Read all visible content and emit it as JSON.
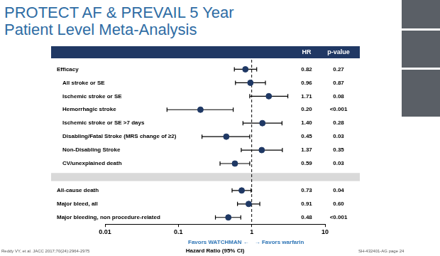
{
  "chart_data": {
    "type": "forest",
    "title": [
      "PROTECT AF & PREVAIL 5 Year",
      "Patient Level Meta-Analysis"
    ],
    "column_headers": [
      "HR",
      "p-value"
    ],
    "categories": [
      "Efficacy",
      "All stroke or SE",
      "Ischemic stroke or SE",
      "Hemorrhagic stroke",
      "Ischemic stroke or SE >7 days",
      "Disabling/Fatal Stroke (MRS change of ≥2)",
      "Non-Disabling Stroke",
      "CV/unexplained death",
      null,
      "All-cause death",
      "Major bleed, all",
      "Major bleeding, non procedure-related"
    ],
    "values": [
      0.82,
      0.96,
      1.71,
      0.2,
      1.4,
      0.45,
      1.37,
      0.59,
      null,
      0.73,
      0.91,
      0.48
    ],
    "value_labels": [
      "0.82",
      "0.96",
      "1.71",
      "0.20",
      "1.40",
      "0.45",
      "1.37",
      "0.59",
      null,
      "0.73",
      "0.91",
      "0.48"
    ],
    "ci_lower": [
      0.58,
      0.6,
      0.94,
      0.07,
      0.76,
      0.21,
      0.72,
      0.37,
      null,
      0.54,
      0.64,
      0.32
    ],
    "ci_upper": [
      1.17,
      1.54,
      3.11,
      0.56,
      2.59,
      0.94,
      2.62,
      0.94,
      null,
      0.98,
      1.29,
      0.71
    ],
    "p_values": [
      "0.27",
      "0.87",
      "0.08",
      "<0.001",
      "0.28",
      "0.03",
      "0.35",
      "0.03",
      null,
      "0.04",
      "0.60",
      "<0.001"
    ],
    "x_label": "Hazard Ratio (95% CI)",
    "direction_labels": [
      "Favors WATCHMAN ←",
      "→ Favors warfarin"
    ],
    "reference_line": 1,
    "log": "x",
    "xlim": [
      0.01,
      10
    ],
    "xticks": [
      0.01,
      0.1,
      1,
      10
    ],
    "grid": false,
    "data_labels": true,
    "marker": "circle",
    "color": "#1f3864",
    "footnote": "Reddy VY, et al. JACC 2017;70(24):2964-2975",
    "page_label": "SH-432401-AG page 24"
  }
}
